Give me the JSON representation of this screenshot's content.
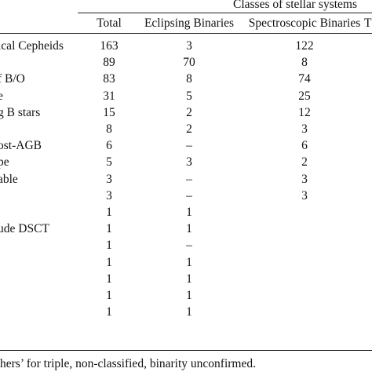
{
  "table": {
    "group_header": "Classes of stellar systems",
    "columns": [
      "Total",
      "Eclipsing Binaries",
      "Spectroscopic Binaries",
      "T"
    ],
    "rows": [
      {
        "label": "ical Cepheids",
        "total": "163",
        "eclipsing": "3",
        "spectroscopic": "122"
      },
      {
        "label": "",
        "total": "89",
        "eclipsing": "70",
        "spectroscopic": "8"
      },
      {
        "label": "f B/O",
        "total": "83",
        "eclipsing": "8",
        "spectroscopic": "74"
      },
      {
        "label": "e",
        "total": "31",
        "eclipsing": "5",
        "spectroscopic": "25"
      },
      {
        "label": "g B stars",
        "total": "15",
        "eclipsing": "2",
        "spectroscopic": "12"
      },
      {
        "label": "",
        "total": "8",
        "eclipsing": "2",
        "spectroscopic": "3"
      },
      {
        "label": "ost-AGB",
        "total": "6",
        "eclipsing": "–",
        "spectroscopic": "6"
      },
      {
        "label": "pe",
        "total": "5",
        "eclipsing": "3",
        "spectroscopic": "2"
      },
      {
        "label": "able",
        "total": "3",
        "eclipsing": "–",
        "spectroscopic": "3"
      },
      {
        "label": "",
        "total": "3",
        "eclipsing": "–",
        "spectroscopic": "3"
      },
      {
        "label": "",
        "total": "1",
        "eclipsing": "1",
        "spectroscopic": ""
      },
      {
        "label": "ude DSCT",
        "total": "1",
        "eclipsing": "1",
        "spectroscopic": ""
      },
      {
        "label": "",
        "total": "1",
        "eclipsing": "–",
        "spectroscopic": ""
      },
      {
        "label": "",
        "total": "1",
        "eclipsing": "1",
        "spectroscopic": ""
      },
      {
        "label": "",
        "total": "1",
        "eclipsing": "1",
        "spectroscopic": ""
      },
      {
        "label": "",
        "total": "1",
        "eclipsing": "1",
        "spectroscopic": ""
      },
      {
        "label": "",
        "total": "1",
        "eclipsing": "1",
        "spectroscopic": ""
      }
    ]
  },
  "footnote": "hers’ for triple, non-classified, binarity unconfirmed."
}
